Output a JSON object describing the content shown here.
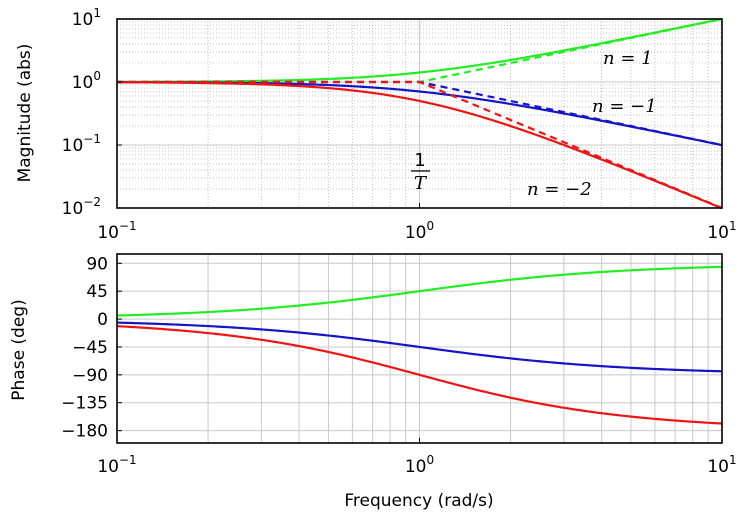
{
  "chart_data": [
    {
      "type": "line",
      "panel": "magnitude",
      "ylabel": "Magnitude (abs)",
      "xscale": "log",
      "yscale": "log",
      "xlim": [
        0.1,
        10
      ],
      "ylim": [
        0.01,
        10
      ],
      "xticks": [
        {
          "base": "10",
          "exp": "−1"
        },
        {
          "base": "10",
          "exp": "0"
        },
        {
          "base": "10",
          "exp": "1"
        }
      ],
      "yticks": [
        {
          "value": 10,
          "base": "10",
          "exp": "1"
        },
        {
          "value": 1,
          "base": "10",
          "exp": "0"
        },
        {
          "value": 0.1,
          "base": "10",
          "exp": "−1"
        },
        {
          "value": 0.01,
          "base": "10",
          "exp": "−2"
        }
      ],
      "grid": true,
      "series": [
        {
          "n": 1,
          "color": "#22ee22",
          "style": "solid",
          "description": "exact magnitude (1+(ωT)^2)^(1/2)"
        },
        {
          "n": 1,
          "color": "#22ee22",
          "style": "dashed",
          "description": "asymptote"
        },
        {
          "n": -1,
          "color": "#1414c8",
          "style": "solid",
          "description": "exact magnitude"
        },
        {
          "n": -1,
          "color": "#1414c8",
          "style": "dashed",
          "description": "asymptote"
        },
        {
          "n": -2,
          "color": "#ee1414",
          "style": "solid",
          "description": "exact magnitude"
        },
        {
          "n": -2,
          "color": "#ee1414",
          "style": "dashed",
          "description": "asymptote"
        }
      ],
      "corner_frequency": 1,
      "annotations": {
        "n1": "n = 1",
        "nm1": "n = −1",
        "nm2": "n = −2",
        "frac_num": "1",
        "frac_den": "T"
      }
    },
    {
      "type": "line",
      "panel": "phase",
      "ylabel": "Phase (deg)",
      "xlabel": "Frequency (rad/s)",
      "xscale": "log",
      "xlim": [
        0.1,
        10
      ],
      "ylim": [
        -200,
        105
      ],
      "xticks": [
        {
          "base": "10",
          "exp": "−1"
        },
        {
          "base": "10",
          "exp": "0"
        },
        {
          "base": "10",
          "exp": "1"
        }
      ],
      "yticks": [
        {
          "value": 90,
          "label": "90"
        },
        {
          "value": 45,
          "label": "45"
        },
        {
          "value": 0,
          "label": "0"
        },
        {
          "value": -45,
          "label": "−45"
        },
        {
          "value": -90,
          "label": "−90"
        },
        {
          "value": -135,
          "label": "−135"
        },
        {
          "value": -180,
          "label": "−180"
        }
      ],
      "grid": true,
      "series": [
        {
          "n": 1,
          "color": "#22ee22",
          "description": "phase 90·n·atan(ωT)/90 deg, from about 6 to 84"
        },
        {
          "n": -1,
          "color": "#1414c8",
          "description": "phase from about −6 to −84"
        },
        {
          "n": -2,
          "color": "#ee1414",
          "description": "phase from about −11 to −169"
        }
      ]
    }
  ]
}
